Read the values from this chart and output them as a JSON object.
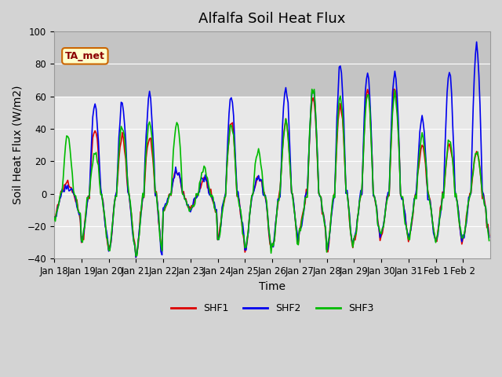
{
  "title": "Alfalfa Soil Heat Flux",
  "ylabel": "Soil Heat Flux (W/m2)",
  "xlabel": "Time",
  "ylim": [
    -40,
    100
  ],
  "shaded_region": [
    60,
    100
  ],
  "background_color": "#d3d3d3",
  "axes_bg": "#e8e8e8",
  "ta_met_label": "TA_met",
  "ta_met_box_facecolor": "#ffffcc",
  "ta_met_box_edgecolor": "#cc6600",
  "legend_labels": [
    "SHF1",
    "SHF2",
    "SHF3"
  ],
  "line_colors": [
    "#dd0000",
    "#0000ee",
    "#00bb00"
  ],
  "line_width": 1.2,
  "tick_labels": [
    "Jan 18",
    "Jan 19",
    "Jan 20",
    "Jan 21",
    "Jan 22",
    "Jan 23",
    "Jan 24",
    "Jan 25",
    "Jan 26",
    "Jan 27",
    "Jan 28",
    "Jan 29",
    "Jan 30",
    "Jan 31",
    "Feb 1",
    "Feb 2"
  ],
  "yticks": [
    -40,
    -20,
    0,
    20,
    40,
    60,
    80,
    100
  ],
  "title_fontsize": 13,
  "axes_label_fontsize": 10,
  "tick_fontsize": 8.5,
  "n_days": 16,
  "day_peaks1": [
    8,
    40,
    35,
    35,
    14,
    8,
    45,
    10,
    45,
    60,
    55,
    65,
    65,
    30,
    30,
    25
  ],
  "day_peaks2": [
    5,
    55,
    55,
    60,
    14,
    10,
    60,
    10,
    65,
    65,
    78,
    75,
    75,
    47,
    75,
    90
  ],
  "day_peaks3": [
    36,
    26,
    42,
    44,
    45,
    14,
    42,
    26,
    45,
    65,
    60,
    62,
    62,
    35,
    33,
    25
  ],
  "trough_vals": [
    -15,
    -30,
    -35,
    -38,
    -10,
    -10,
    -28,
    -35,
    -33,
    -22,
    -35,
    -28,
    -25,
    -28,
    -30,
    -27
  ]
}
